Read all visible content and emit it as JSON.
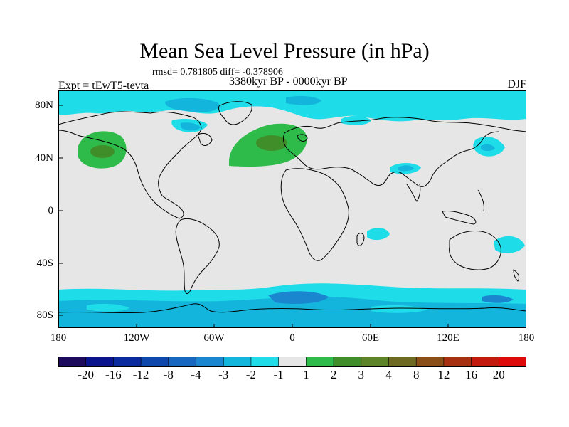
{
  "title": "Mean Sea Level Pressure (in hPa)",
  "stats_line": "rmsd= 0.781805 diff= -0.378906",
  "period": "3380kyr BP - 0000kyr BP",
  "experiment": "Expt = tEwT5-tevta",
  "season": "DJF",
  "lat_labels": [
    "80N",
    "40N",
    "0",
    "40S",
    "80S"
  ],
  "lon_labels": [
    "180",
    "120W",
    "60W",
    "0",
    "60E",
    "120E",
    "180"
  ],
  "colorbar": {
    "labels": [
      "-20",
      "-16",
      "-12",
      "-8",
      "-4",
      "-3",
      "-2",
      "-1",
      "1",
      "2",
      "3",
      "4",
      "8",
      "12",
      "16",
      "20"
    ],
    "colors": [
      "#1e0a5c",
      "#0a148c",
      "#0b2a9e",
      "#0f48ad",
      "#1766c0",
      "#1a86d0",
      "#13b5dc",
      "#1fdde8",
      "#e6e6e6",
      "#2ebb4a",
      "#3f8e2a",
      "#5e8428",
      "#6e6a22",
      "#8a4f17",
      "#a6300f",
      "#c21a0c",
      "#de0a0a"
    ]
  },
  "colors": {
    "background_field": "#e6e6e6",
    "light_negative": "#1fdde8",
    "medium_negative": "#13b5dc",
    "deep_negative": "#1a86d0",
    "positive_1": "#2ebb4a",
    "positive_2": "#3f8e2a"
  }
}
